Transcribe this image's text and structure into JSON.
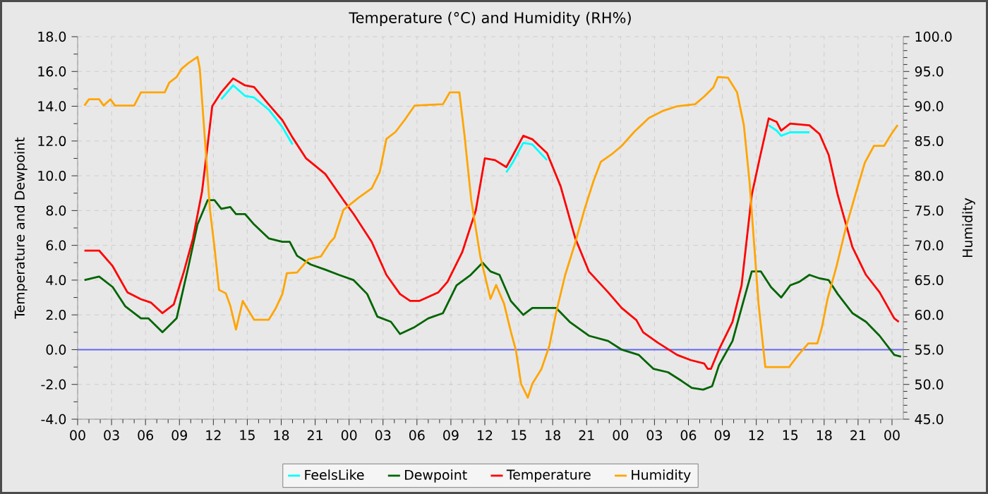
{
  "chart_data": {
    "type": "line",
    "title": "Temperature (°C) and Humidity (RH%)",
    "ylabel": "Temperature and Dewpoint",
    "y2label": "Humidity",
    "xlim": [
      0,
      73
    ],
    "ylim": [
      -4,
      18
    ],
    "y2lim": [
      45,
      100
    ],
    "xticks": [
      {
        "value": 0,
        "label": "00"
      },
      {
        "value": 3,
        "label": "03"
      },
      {
        "value": 6,
        "label": "06"
      },
      {
        "value": 9,
        "label": "09"
      },
      {
        "value": 12,
        "label": "12"
      },
      {
        "value": 15,
        "label": "15"
      },
      {
        "value": 18,
        "label": "18"
      },
      {
        "value": 21,
        "label": "21"
      },
      {
        "value": 24,
        "label": "00"
      },
      {
        "value": 27,
        "label": "03"
      },
      {
        "value": 30,
        "label": "06"
      },
      {
        "value": 33,
        "label": "09"
      },
      {
        "value": 36,
        "label": "12"
      },
      {
        "value": 39,
        "label": "15"
      },
      {
        "value": 42,
        "label": "18"
      },
      {
        "value": 45,
        "label": "21"
      },
      {
        "value": 48,
        "label": "00"
      },
      {
        "value": 51,
        "label": "03"
      },
      {
        "value": 54,
        "label": "06"
      },
      {
        "value": 57,
        "label": "09"
      },
      {
        "value": 60,
        "label": "12"
      },
      {
        "value": 63,
        "label": "15"
      },
      {
        "value": 66,
        "label": "18"
      },
      {
        "value": 69,
        "label": "21"
      },
      {
        "value": 72,
        "label": "00"
      }
    ],
    "yticks": [
      {
        "value": -4,
        "label": "-4.0"
      },
      {
        "value": -2,
        "label": "-2.0"
      },
      {
        "value": 0,
        "label": "0.0"
      },
      {
        "value": 2,
        "label": "2.0"
      },
      {
        "value": 4,
        "label": "4.0"
      },
      {
        "value": 6,
        "label": "6.0"
      },
      {
        "value": 8,
        "label": "8.0"
      },
      {
        "value": 10,
        "label": "10.0"
      },
      {
        "value": 12,
        "label": "12.0"
      },
      {
        "value": 14,
        "label": "14.0"
      },
      {
        "value": 16,
        "label": "16.0"
      },
      {
        "value": 18,
        "label": "18.0"
      }
    ],
    "y2ticks": [
      {
        "value": 45,
        "label": "45.0"
      },
      {
        "value": 50,
        "label": "50.0"
      },
      {
        "value": 55,
        "label": "55.0"
      },
      {
        "value": 60,
        "label": "60.0"
      },
      {
        "value": 65,
        "label": "65.0"
      },
      {
        "value": 70,
        "label": "70.0"
      },
      {
        "value": 75,
        "label": "75.0"
      },
      {
        "value": 80,
        "label": "80.0"
      },
      {
        "value": 85,
        "label": "85.0"
      },
      {
        "value": 90,
        "label": "90.0"
      },
      {
        "value": 95,
        "label": "95.0"
      },
      {
        "value": 100,
        "label": "100.0"
      }
    ],
    "grid": true,
    "legend": "bottom",
    "ref_lines": [
      {
        "axis": "y",
        "value": 0,
        "color": "#6666ee"
      }
    ],
    "series": [
      {
        "name": "FeelsLike",
        "color": "#00ffff",
        "x": [
          12.7,
          13.75,
          14.8,
          15.6,
          16.9,
          18.1,
          19.0,
          30.0,
          37.9,
          38.5,
          39.4,
          40.2,
          41.5,
          50.0,
          61.1,
          61.8,
          62.2,
          63.0,
          64.7
        ],
        "values": [
          14.4,
          15.2,
          14.6,
          14.5,
          13.8,
          12.8,
          11.8,
          null,
          10.2,
          10.8,
          11.9,
          11.8,
          10.9,
          null,
          12.9,
          12.6,
          12.3,
          12.5,
          12.5
        ]
      },
      {
        "name": "Dewpoint",
        "color": "#006400",
        "x": [
          0.6,
          1.9,
          3.1,
          4.2,
          5.6,
          6.25,
          7.5,
          8.75,
          9.8,
          10.6,
          11.5,
          12.1,
          12.7,
          13.5,
          14.0,
          14.8,
          15.6,
          16.9,
          18.1,
          18.75,
          19.4,
          20.6,
          21.9,
          23.1,
          24.4,
          25.6,
          26.5,
          27.7,
          28.5,
          29.8,
          31.0,
          32.3,
          33.5,
          34.75,
          35.8,
          36.5,
          37.3,
          38.3,
          39.4,
          40.2,
          42.3,
          43.5,
          45.2,
          46.9,
          48.1,
          49.6,
          50.9,
          52.2,
          53.4,
          54.3,
          55.3,
          56.1,
          56.7,
          57.9,
          58.7,
          59.6,
          60.4,
          61.3,
          62.2,
          63.0,
          63.8,
          64.7,
          65.6,
          66.4,
          67.2,
          68.5,
          69.7,
          70.9,
          72.2,
          72.8
        ],
        "values": [
          4.0,
          4.2,
          3.6,
          2.5,
          1.8,
          1.8,
          1.0,
          1.8,
          4.8,
          7.2,
          8.6,
          8.6,
          8.1,
          8.2,
          7.8,
          7.8,
          7.2,
          6.4,
          6.2,
          6.2,
          5.4,
          4.9,
          4.6,
          4.3,
          4.0,
          3.2,
          1.9,
          1.6,
          0.9,
          1.3,
          1.8,
          2.1,
          3.7,
          4.3,
          5.0,
          4.5,
          4.3,
          2.8,
          2.0,
          2.4,
          2.4,
          1.6,
          0.8,
          0.5,
          0.0,
          -0.3,
          -1.1,
          -1.3,
          -1.8,
          -2.2,
          -2.3,
          -2.1,
          -0.9,
          0.5,
          2.4,
          4.5,
          4.5,
          3.6,
          3.0,
          3.7,
          3.9,
          4.3,
          4.1,
          4.0,
          3.2,
          2.1,
          1.6,
          0.8,
          -0.3,
          -0.4
        ]
      },
      {
        "name": "Temperature",
        "color": "#ff0000",
        "x": [
          0.6,
          1.9,
          3.1,
          4.4,
          5.6,
          6.5,
          7.5,
          8.5,
          9.4,
          10.2,
          11.0,
          11.5,
          11.9,
          12.7,
          13.75,
          14.8,
          15.6,
          16.9,
          18.1,
          19.0,
          20.2,
          21.9,
          23.5,
          24.4,
          26.0,
          27.3,
          28.5,
          29.4,
          30.2,
          31.9,
          32.7,
          34.0,
          35.2,
          36.0,
          36.9,
          37.9,
          38.5,
          39.4,
          40.2,
          41.5,
          42.7,
          44.0,
          45.2,
          46.9,
          48.1,
          49.4,
          50.0,
          51.3,
          53.0,
          54.2,
          55.4,
          55.7,
          56.0,
          56.7,
          57.9,
          58.7,
          59.6,
          60.3,
          61.1,
          61.8,
          62.2,
          63.0,
          64.7,
          65.6,
          66.4,
          67.2,
          68.5,
          69.7,
          70.9,
          72.2,
          72.6
        ],
        "values": [
          5.7,
          5.7,
          4.8,
          3.3,
          2.9,
          2.7,
          2.1,
          2.6,
          4.5,
          6.4,
          9.1,
          11.8,
          14.0,
          14.8,
          15.6,
          15.2,
          15.1,
          14.1,
          13.2,
          12.2,
          11.0,
          10.1,
          8.6,
          7.8,
          6.2,
          4.3,
          3.2,
          2.8,
          2.8,
          3.3,
          3.9,
          5.6,
          8.0,
          11.0,
          10.9,
          10.5,
          11.2,
          12.3,
          12.1,
          11.3,
          9.4,
          6.4,
          4.5,
          3.3,
          2.4,
          1.7,
          1.0,
          0.4,
          -0.3,
          -0.6,
          -0.8,
          -1.1,
          -1.1,
          0.0,
          1.6,
          3.7,
          8.9,
          11.0,
          13.3,
          13.1,
          12.6,
          13.0,
          12.9,
          12.4,
          11.2,
          8.9,
          5.9,
          4.3,
          3.3,
          1.8,
          1.6
        ]
      },
      {
        "name": "Humidity",
        "color": "#ffa500",
        "axis": "y2",
        "x": [
          0.6,
          1.0,
          1.9,
          2.3,
          2.9,
          3.3,
          5.0,
          5.6,
          7.7,
          8.1,
          8.75,
          9.2,
          9.8,
          10.6,
          10.8,
          11.25,
          11.7,
          12.1,
          12.5,
          13.1,
          13.5,
          14.0,
          14.6,
          15.0,
          15.6,
          16.9,
          17.5,
          18.1,
          18.5,
          19.4,
          20.4,
          21.5,
          22.3,
          22.7,
          23.5,
          24.8,
          26.0,
          26.7,
          27.3,
          28.1,
          28.9,
          29.8,
          32.3,
          32.9,
          33.75,
          34.2,
          34.8,
          35.6,
          36.5,
          37.0,
          37.7,
          38.3,
          38.75,
          39.2,
          39.8,
          40.2,
          41.0,
          41.7,
          42.3,
          43.1,
          44.0,
          44.8,
          45.6,
          46.25,
          47.3,
          48.1,
          49.2,
          50.5,
          51.7,
          53.0,
          54.6,
          55.4,
          56.2,
          56.6,
          57.5,
          58.3,
          58.9,
          59.4,
          59.8,
          60.2,
          60.8,
          62.9,
          63.7,
          64.6,
          65.4,
          65.8,
          66.3,
          67.1,
          67.9,
          68.8,
          69.6,
          70.4,
          71.3,
          71.9,
          72.5
        ],
        "values": [
          90.1,
          91.0,
          91.0,
          90.1,
          91.0,
          90.1,
          90.1,
          92.0,
          92.0,
          93.4,
          94.2,
          95.4,
          96.2,
          97.1,
          95.4,
          85.3,
          75.1,
          69.7,
          63.6,
          63.1,
          61.3,
          57.9,
          62.0,
          60.9,
          59.3,
          59.3,
          60.9,
          63.0,
          66.0,
          66.1,
          68.0,
          68.4,
          70.4,
          71.1,
          75.1,
          76.8,
          78.2,
          80.5,
          85.3,
          86.3,
          88.0,
          90.1,
          90.3,
          92.0,
          92.0,
          85.9,
          76.5,
          68.4,
          62.3,
          64.3,
          61.6,
          57.6,
          54.9,
          50.1,
          48.1,
          50.1,
          52.2,
          55.5,
          60.3,
          65.7,
          70.4,
          75.1,
          79.2,
          82.0,
          83.2,
          84.3,
          86.3,
          88.3,
          89.3,
          90.0,
          90.3,
          91.4,
          92.7,
          94.2,
          94.1,
          92.0,
          87.3,
          79.2,
          70.4,
          61.6,
          52.5,
          52.5,
          54.2,
          55.9,
          55.9,
          58.2,
          62.3,
          67.0,
          72.4,
          77.5,
          81.9,
          84.3,
          84.3,
          85.9,
          87.3
        ]
      }
    ]
  }
}
